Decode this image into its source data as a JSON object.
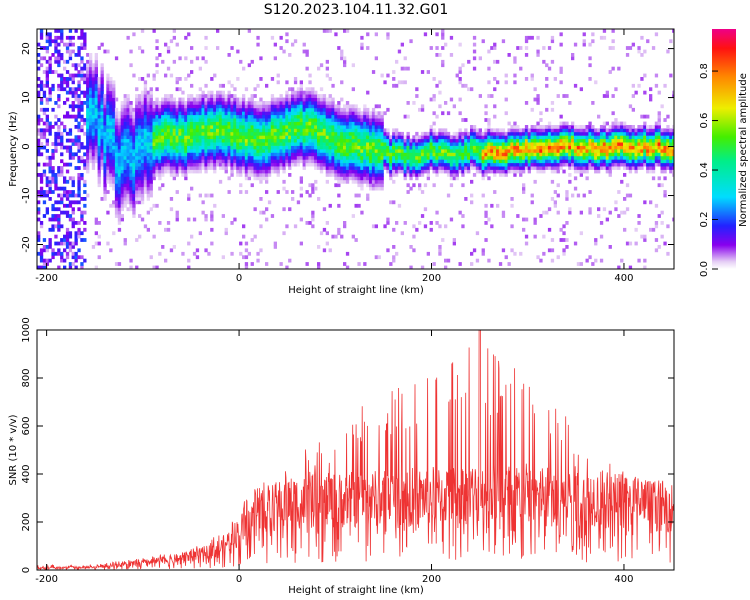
{
  "chart_data": [
    {
      "type": "heatmap",
      "title": "S120.2023.104.11.32.G01",
      "xlabel": "Height of straight line (km)",
      "ylabel": "Frequency (Hz)",
      "xlim": [
        -210,
        452
      ],
      "ylim": [
        -25,
        24
      ],
      "xticks": [
        -200,
        0,
        200,
        400
      ],
      "yticks": [
        -20,
        -10,
        0,
        10,
        20
      ],
      "colorbar": {
        "label": "Normalized spectral amplitude",
        "range": [
          0,
          0.97
        ],
        "ticks": [
          0.0,
          0.2,
          0.4,
          0.6,
          0.8
        ]
      },
      "ridge_x": [
        -210,
        -180,
        -160,
        -140,
        -120,
        -105,
        -95,
        -80,
        -60,
        -40,
        -20,
        0,
        20,
        40,
        60,
        80,
        100,
        120,
        140,
        160,
        180,
        200,
        220,
        240,
        260,
        280,
        300,
        320,
        340,
        360,
        380,
        400,
        420,
        452
      ],
      "ridge_freq": [
        0,
        5,
        7,
        2,
        -4,
        -3,
        1,
        2,
        1.5,
        2.5,
        3,
        2,
        1,
        2,
        4,
        3,
        1,
        0,
        -1,
        -2,
        -2.5,
        -1,
        -2,
        -1,
        -1.5,
        -1.5,
        -1,
        -0.5,
        -0.5,
        -0.5,
        -0.5,
        -0.5,
        -0.5,
        -0.5
      ]
    },
    {
      "type": "line",
      "title": "",
      "xlabel": "Height of straight line (km)",
      "ylabel": "SNR (10 * v/v)",
      "xlim": [
        -210,
        452
      ],
      "ylim": [
        0,
        1000
      ],
      "xticks": [
        -200,
        0,
        200,
        400
      ],
      "yticks": [
        0,
        200,
        400,
        600,
        800,
        1000
      ],
      "series": [
        {
          "name": "SNR",
          "color": "#ee3333",
          "x": [
            -210,
            -150,
            -100,
            -50,
            -20,
            0,
            20,
            50,
            100,
            150,
            200,
            250,
            300,
            350,
            400,
            452
          ],
          "envelope_mean": [
            8,
            12,
            30,
            55,
            90,
            160,
            240,
            280,
            290,
            300,
            310,
            320,
            320,
            310,
            290,
            260
          ],
          "envelope_peak": [
            20,
            25,
            50,
            90,
            150,
            260,
            360,
            480,
            560,
            820,
            800,
            1000,
            800,
            600,
            420,
            330
          ]
        }
      ]
    }
  ]
}
